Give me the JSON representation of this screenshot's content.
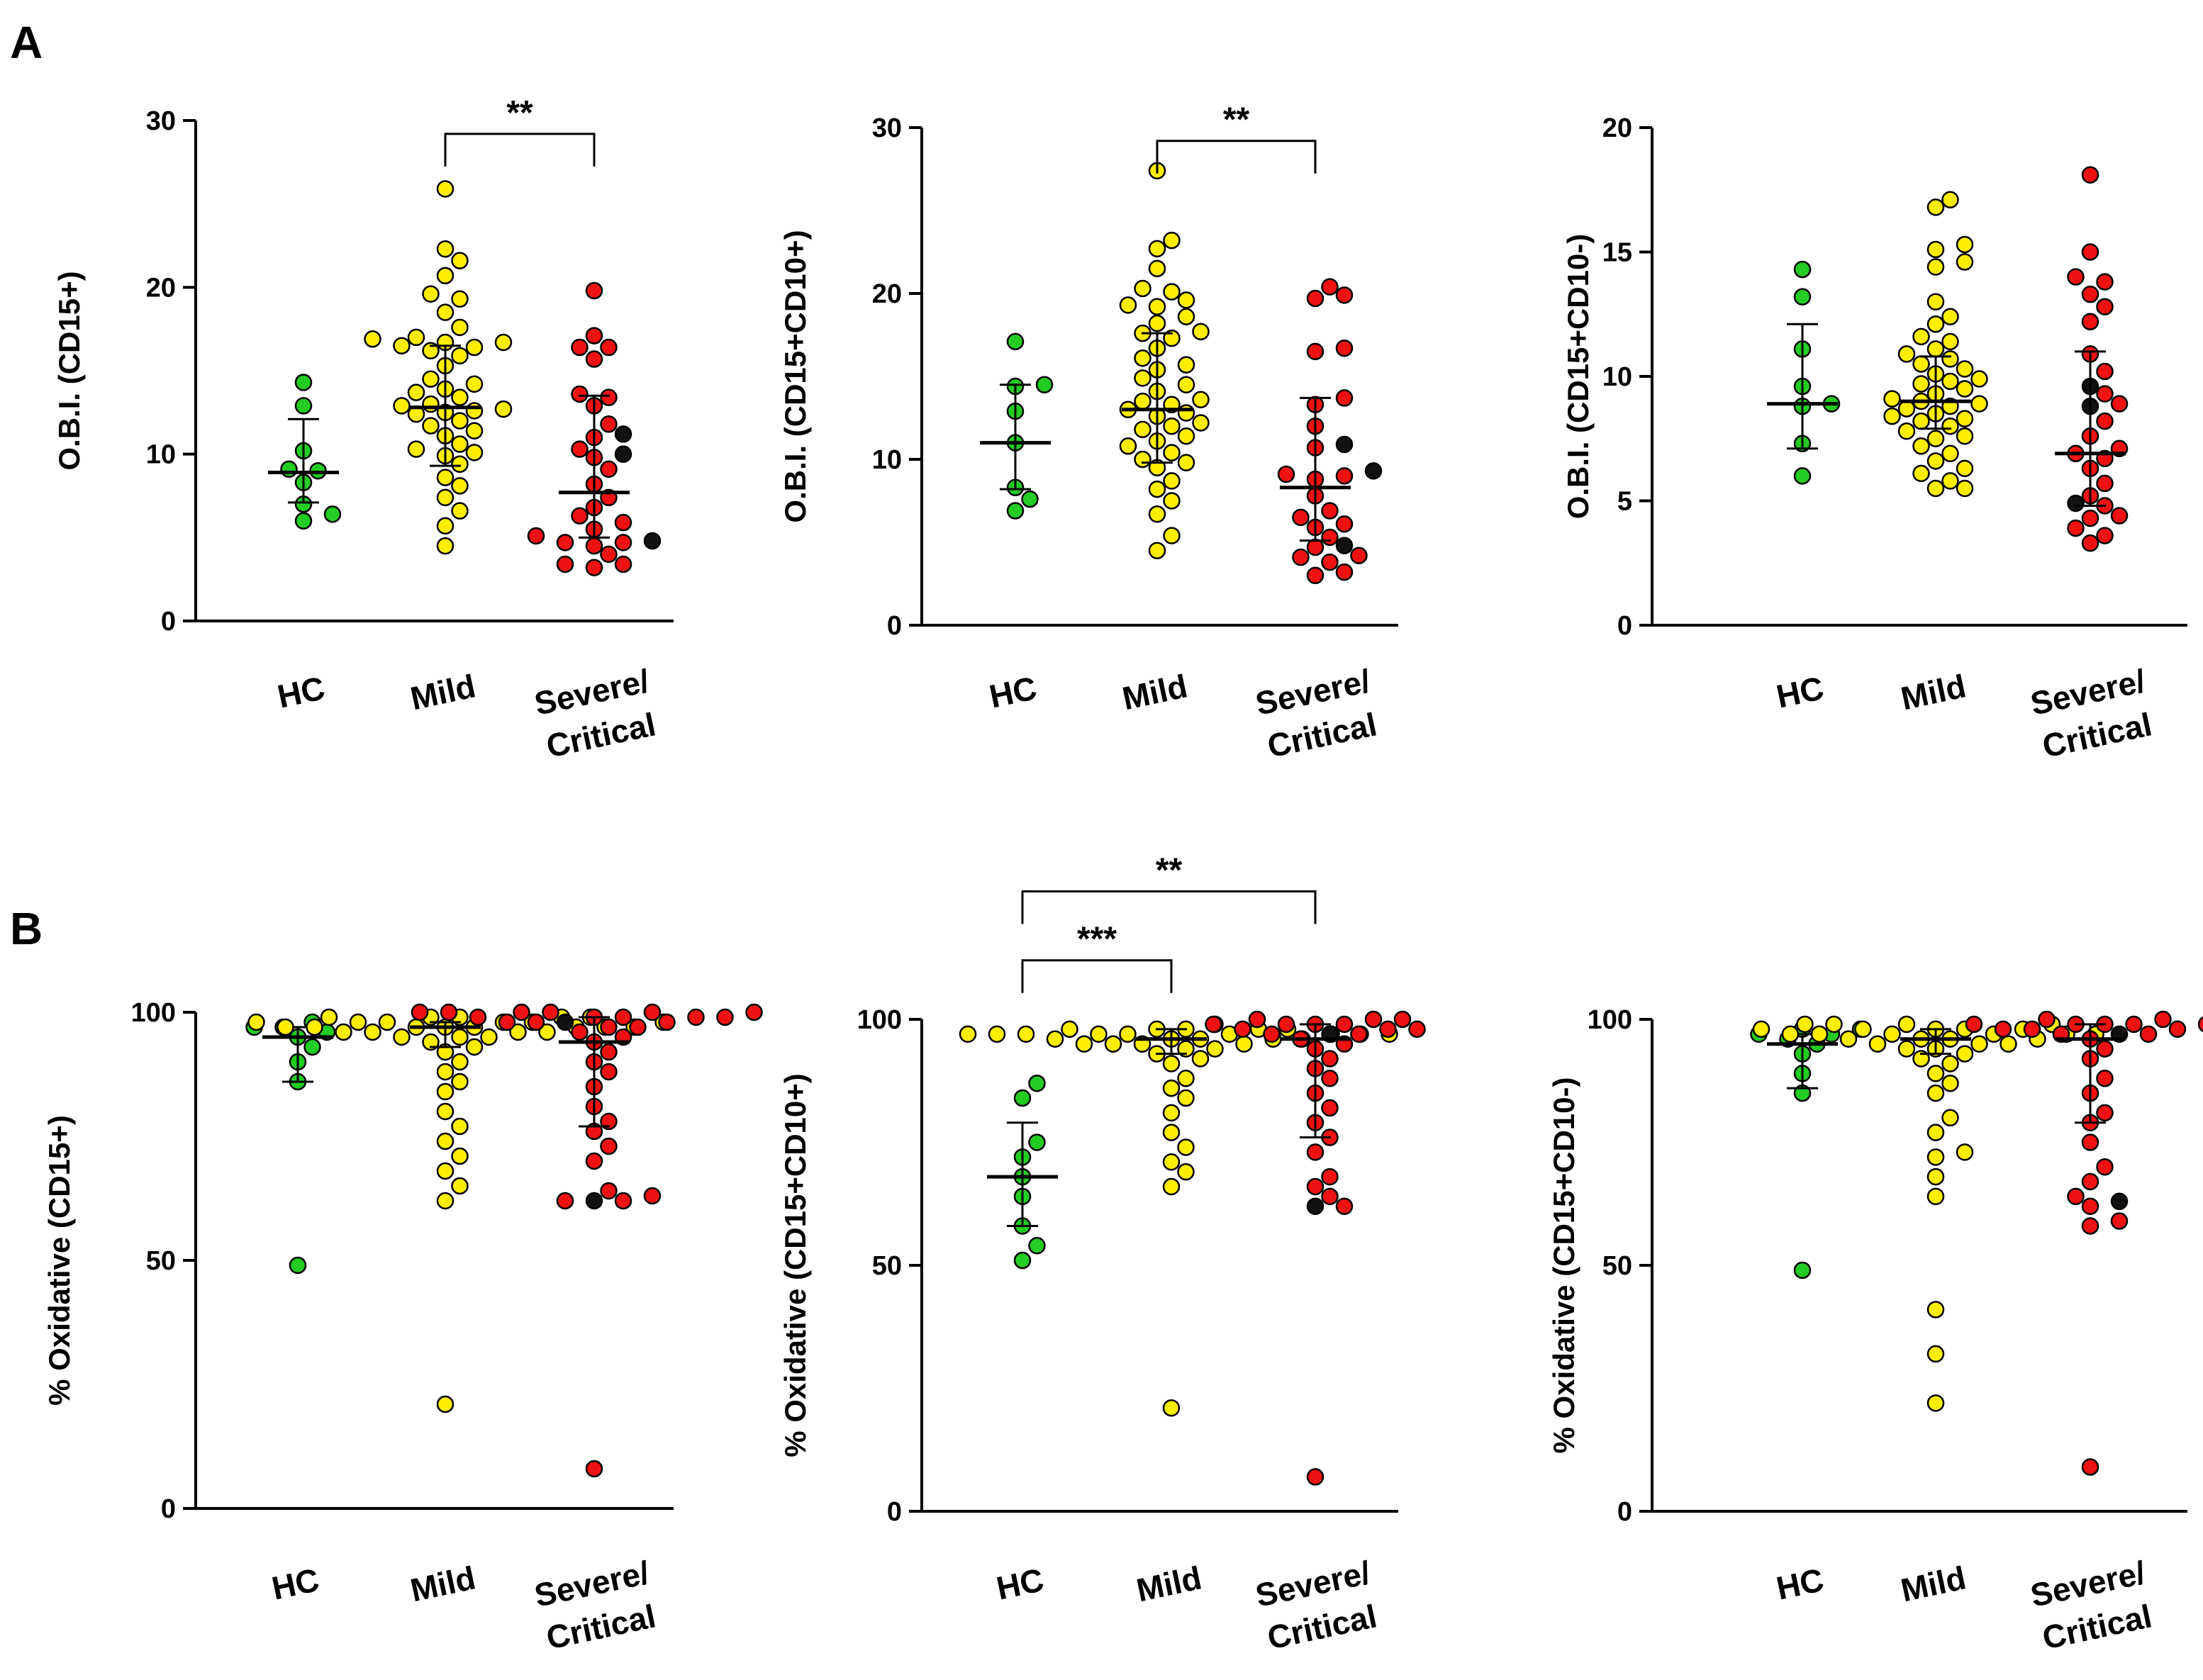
{
  "panels": [
    {
      "letter": "A"
    },
    {
      "letter": "B"
    }
  ],
  "colors": {
    "HC": "#22cc22",
    "Mild": "#ffee00",
    "Severe/Critical": "#ee1111",
    "highlight": "#111111"
  },
  "chart_data": [
    {
      "type": "scatter",
      "panel": "A",
      "ylabel": "O.B.I. (CD15+)",
      "ylim": [
        0,
        30
      ],
      "yticks": [
        0,
        10,
        20,
        30
      ],
      "categories": [
        "HC",
        "Mild",
        "Severe/Critical"
      ],
      "category_lines": [
        [
          "HC"
        ],
        [
          "Mild"
        ],
        [
          "Severe/",
          "Critical"
        ]
      ],
      "groups": [
        {
          "name": "HC",
          "median": 8.9,
          "q1": 7.1,
          "q3": 12.1,
          "points": [
            14.3,
            12.9,
            10.2,
            9.0,
            9.1,
            8.3,
            7.0,
            6.0,
            6.4
          ]
        },
        {
          "name": "Mild",
          "median": 12.8,
          "q1": 9.3,
          "q3": 16.5,
          "points": [
            25.9,
            22.3,
            21.6,
            20.7,
            19.6,
            19.3,
            18.5,
            17.6,
            17.0,
            16.9,
            16.7,
            16.7,
            16.5,
            16.4,
            16.2,
            15.9,
            15.3,
            14.5,
            14.2,
            13.9,
            13.7,
            13.4,
            13.0,
            12.9,
            12.7,
            12.6,
            12.5,
            12.4,
            12.0,
            11.7,
            11.4,
            11.1,
            10.6,
            10.3,
            10.1,
            9.9,
            9.4,
            8.6,
            8.1,
            7.4,
            6.6,
            5.7,
            4.5
          ]
        },
        {
          "name": "Severe/Critical",
          "median": 7.7,
          "q1": 5.0,
          "q3": 13.5,
          "points": [
            19.8,
            17.1,
            16.4,
            16.4,
            15.7,
            13.6,
            13.4,
            12.9,
            11.8,
            11.0,
            10.3,
            9.8,
            9.1,
            8.2,
            7.4,
            6.8,
            6.3,
            5.9,
            5.5,
            5.1,
            4.7,
            4.7,
            4.5,
            4.0,
            3.4,
            3.4,
            3.2
          ],
          "black_points": [
            11.2,
            10.0,
            4.8
          ]
        }
      ],
      "significance": [
        {
          "from": "Mild",
          "to": "Severe/Critical",
          "label": "**",
          "level": 29.2
        }
      ]
    },
    {
      "type": "scatter",
      "panel": "A",
      "ylabel": "O.B.I. (CD15+CD10+)",
      "ylim": [
        0,
        30
      ],
      "yticks": [
        0,
        10,
        20,
        30
      ],
      "categories": [
        "HC",
        "Mild",
        "Severe/Critical"
      ],
      "category_lines": [
        [
          "HC"
        ],
        [
          "Mild"
        ],
        [
          "Severe/",
          "Critical"
        ]
      ],
      "groups": [
        {
          "name": "HC",
          "median": 11.0,
          "q1": 8.2,
          "q3": 14.5,
          "points": [
            17.1,
            14.5,
            14.4,
            12.9,
            11.0,
            8.3,
            7.6,
            6.9
          ]
        },
        {
          "name": "Mild",
          "median": 13.0,
          "q1": 9.8,
          "q3": 17.6,
          "points": [
            27.4,
            23.2,
            22.7,
            21.5,
            20.3,
            20.1,
            19.6,
            19.3,
            19.2,
            18.6,
            18.2,
            17.7,
            17.6,
            17.3,
            16.7,
            16.1,
            15.7,
            15.4,
            14.9,
            14.5,
            14.1,
            13.6,
            13.5,
            13.3,
            13.0,
            12.8,
            12.6,
            12.2,
            12.0,
            11.8,
            11.4,
            11.1,
            10.8,
            10.4,
            10.0,
            9.8,
            9.5,
            8.7,
            8.2,
            7.5,
            6.7,
            5.4,
            4.5
          ]
        },
        {
          "name": "Severe/Critical",
          "median": 8.3,
          "q1": 5.1,
          "q3": 13.7,
          "points": [
            20.4,
            19.9,
            19.7,
            16.7,
            16.5,
            13.7,
            13.3,
            12.0,
            10.7,
            9.1,
            9.0,
            8.8,
            7.8,
            6.9,
            6.5,
            6.1,
            5.9,
            5.3,
            4.7,
            4.2,
            4.1,
            3.8,
            3.2,
            3.0
          ],
          "black_points": [
            10.9,
            9.3,
            4.8
          ]
        }
      ],
      "significance": [
        {
          "from": "Mild",
          "to": "Severe/Critical",
          "label": "**",
          "level": 29.2
        }
      ]
    },
    {
      "type": "scatter",
      "panel": "A",
      "ylabel": "O.B.I. (CD15+CD10-)",
      "ylim": [
        0,
        20
      ],
      "yticks": [
        0,
        5,
        10,
        15,
        20
      ],
      "categories": [
        "HC",
        "Mild",
        "Severe/Critical"
      ],
      "category_lines": [
        [
          "HC"
        ],
        [
          "Mild"
        ],
        [
          "Severe/",
          "Critical"
        ]
      ],
      "groups": [
        {
          "name": "HC",
          "median": 8.9,
          "q1": 7.1,
          "q3": 12.1,
          "points": [
            14.3,
            13.2,
            11.1,
            9.6,
            8.9,
            8.8,
            7.3,
            6.0
          ]
        },
        {
          "name": "Mild",
          "median": 9.0,
          "q1": 7.9,
          "q3": 10.8,
          "points": [
            17.1,
            16.8,
            15.3,
            15.1,
            14.6,
            14.4,
            13.0,
            12.4,
            12.1,
            11.6,
            11.4,
            11.1,
            10.9,
            10.7,
            10.5,
            10.3,
            10.1,
            9.9,
            9.7,
            9.5,
            9.3,
            9.1,
            9.0,
            8.9,
            8.7,
            8.5,
            8.3,
            8.2,
            8.0,
            7.8,
            7.6,
            7.5,
            7.2,
            6.9,
            6.6,
            6.3,
            6.1,
            5.8,
            5.5,
            5.5,
            9.8,
            8.8,
            8.4
          ]
        },
        {
          "name": "Severe/Critical",
          "median": 6.9,
          "q1": 4.8,
          "q3": 11.0,
          "points": [
            18.1,
            15.0,
            14.0,
            13.8,
            13.3,
            12.8,
            12.2,
            10.9,
            10.2,
            9.3,
            8.9,
            8.2,
            7.6,
            7.1,
            6.9,
            6.7,
            6.3,
            5.7,
            5.2,
            4.8,
            4.3,
            4.4,
            3.9,
            3.6,
            3.3
          ],
          "black_points": [
            9.6,
            8.8,
            4.9
          ]
        }
      ],
      "significance": []
    },
    {
      "type": "scatter",
      "panel": "B",
      "ylabel": "% Oxidative (CD15+)",
      "ylim": [
        0,
        100
      ],
      "yticks": [
        0,
        50,
        100
      ],
      "categories": [
        "HC",
        "Mild",
        "Severe/Critical"
      ],
      "category_lines": [
        [
          "HC"
        ],
        [
          "Mild"
        ],
        [
          "Severe/",
          "Critical"
        ]
      ],
      "groups": [
        {
          "name": "HC",
          "median": 95.0,
          "q1": 86.0,
          "q3": 97.0,
          "points": [
            98,
            97,
            97,
            96,
            95,
            93,
            90,
            86,
            49
          ]
        },
        {
          "name": "Mild",
          "median": 97.0,
          "q1": 93.0,
          "q3": 98.0,
          "points": [
            99,
            99,
            99,
            99,
            99,
            98,
            98,
            98,
            98,
            98,
            98,
            97,
            97,
            97,
            97,
            97,
            97,
            97,
            97,
            96,
            96,
            96,
            96,
            95,
            95,
            95,
            94,
            93,
            92,
            90,
            88,
            86,
            84,
            80,
            77,
            74,
            71,
            68,
            65,
            62,
            21
          ]
        },
        {
          "name": "Severe/Critical",
          "median": 94.0,
          "q1": 77.0,
          "q3": 99.0,
          "points": [
            100,
            100,
            100,
            100,
            100,
            100,
            99,
            99,
            99,
            99,
            99,
            98,
            98,
            98,
            97,
            97,
            96,
            95,
            94,
            92,
            90,
            88,
            85,
            81,
            78,
            76,
            73,
            70,
            64,
            63,
            62,
            62,
            8
          ],
          "black_points": [
            98,
            62
          ]
        }
      ],
      "significance": []
    },
    {
      "type": "scatter",
      "panel": "B",
      "ylabel": "% Oxidative (CD15+CD10+)",
      "ylim": [
        0,
        100
      ],
      "yticks": [
        0,
        50,
        100
      ],
      "categories": [
        "HC",
        "Mild",
        "Severe/Critical"
      ],
      "category_lines": [
        [
          "HC"
        ],
        [
          "Mild"
        ],
        [
          "Severe/",
          "Critical"
        ]
      ],
      "groups": [
        {
          "name": "HC",
          "median": 68.0,
          "q1": 58.0,
          "q3": 79.0,
          "points": [
            87,
            84,
            75,
            72,
            68,
            64,
            58,
            54,
            51
          ]
        },
        {
          "name": "Mild",
          "median": 96.0,
          "q1": 93.0,
          "q3": 98.0,
          "points": [
            99,
            98,
            98,
            98,
            98,
            98,
            97,
            97,
            97,
            97,
            97,
            97,
            97,
            97,
            97,
            96,
            96,
            96,
            96,
            96,
            95,
            95,
            95,
            95,
            94,
            94,
            93,
            92,
            91,
            88,
            86,
            84,
            81,
            77,
            74,
            71,
            69,
            66,
            21
          ]
        },
        {
          "name": "Severe/Critical",
          "median": 96.0,
          "q1": 76.0,
          "q3": 99.0,
          "points": [
            100,
            100,
            100,
            99,
            99,
            99,
            99,
            98,
            98,
            98,
            97,
            97,
            96,
            95,
            94,
            92,
            90,
            88,
            85,
            82,
            79,
            76,
            73,
            68,
            66,
            64,
            62,
            7
          ],
          "black_points": [
            97,
            62
          ]
        }
      ],
      "significance": [
        {
          "from": "HC",
          "to": "Mild",
          "label": "***",
          "level": 112
        },
        {
          "from": "HC",
          "to": "Severe/Critical",
          "label": "**",
          "level": 126
        }
      ]
    },
    {
      "type": "scatter",
      "panel": "B",
      "ylabel": "% Oxidative (CD15+CD10-)",
      "ylim": [
        0,
        100
      ],
      "yticks": [
        0,
        50,
        100
      ],
      "categories": [
        "HC",
        "Mild",
        "Severe/Critical"
      ],
      "category_lines": [
        [
          "HC"
        ],
        [
          "Mild"
        ],
        [
          "Severe/",
          "Critical"
        ]
      ],
      "groups": [
        {
          "name": "HC",
          "median": 95.0,
          "q1": 86.0,
          "q3": 97.0,
          "points": [
            98,
            98,
            97,
            97,
            96,
            95,
            93,
            89,
            85,
            49
          ]
        },
        {
          "name": "Mild",
          "median": 96.0,
          "q1": 93.0,
          "q3": 98.0,
          "points": [
            99,
            99,
            99,
            99,
            98,
            98,
            98,
            98,
            98,
            97,
            97,
            97,
            97,
            97,
            97,
            96,
            96,
            96,
            96,
            95,
            95,
            95,
            94,
            94,
            93,
            92,
            91,
            89,
            87,
            85,
            80,
            77,
            73,
            72,
            68,
            64,
            41,
            32,
            22
          ]
        },
        {
          "name": "Severe/Critical",
          "median": 96.0,
          "q1": 79.0,
          "q3": 99.0,
          "points": [
            100,
            100,
            99,
            99,
            99,
            99,
            99,
            98,
            98,
            98,
            97,
            97,
            96,
            94,
            92,
            88,
            85,
            81,
            79,
            75,
            70,
            67,
            64,
            62,
            59,
            58,
            9
          ],
          "black_points": [
            97,
            63
          ]
        }
      ],
      "significance": []
    }
  ]
}
